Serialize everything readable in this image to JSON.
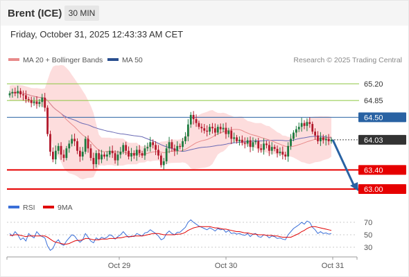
{
  "header": {
    "instrument": "Brent (ICE)",
    "interval": "30 MIN",
    "datetime": "Friday, October 31, 2025 12:43:33 AM CET"
  },
  "legend": {
    "ma20": "MA 20 + Bollinger Bands",
    "ma50": "MA 50",
    "copyright": "Research © 2025 Trading Central",
    "rsi": "RSI",
    "ma9": "9MA"
  },
  "colors": {
    "up": "#1b7a3e",
    "down": "#b2182b",
    "band": "#fdd7d7",
    "ma20": "#e88a8a",
    "ma50": "#6a6ab5",
    "resistance": "#8cc63f",
    "pivot": "#2962a3",
    "support": "#e60000",
    "last": "#333333",
    "rsi": "#3a6fd8",
    "ma9": "#e00000"
  },
  "chart_data": [
    {
      "type": "candlestick",
      "x_labels": [
        "Oct 29",
        "Oct 30",
        "Oct 31"
      ],
      "y_range": [
        62.75,
        65.52
      ],
      "levels": [
        {
          "label": "65.20",
          "value": 65.2,
          "kind": "resistance"
        },
        {
          "label": "64.85",
          "value": 64.85,
          "kind": "resistance"
        },
        {
          "label": "64.50",
          "value": 64.5,
          "kind": "pivot"
        },
        {
          "label": "64.03",
          "value": 64.03,
          "kind": "last"
        },
        {
          "label": "63.40",
          "value": 63.4,
          "kind": "support"
        },
        {
          "label": "63.00",
          "value": 63.0,
          "kind": "support"
        }
      ],
      "forecast": {
        "from": 64.03,
        "to": 63.0
      },
      "close_series": [
        65.0,
        65.03,
        65.0,
        65.05,
        64.98,
        64.96,
        64.88,
        64.86,
        64.8,
        64.83,
        64.78,
        64.82,
        64.91,
        64.7,
        64.15,
        63.78,
        63.62,
        63.8,
        63.9,
        63.72,
        63.65,
        63.85,
        63.95,
        64.05,
        64.0,
        63.8,
        63.68,
        63.78,
        64.05,
        63.85,
        63.65,
        63.52,
        63.75,
        63.62,
        63.72,
        63.68,
        63.72,
        63.8,
        63.75,
        63.6,
        63.72,
        63.78,
        63.92,
        63.8,
        63.68,
        63.75,
        63.7,
        63.82,
        63.75,
        63.7,
        63.85,
        63.88,
        63.98,
        63.92,
        63.82,
        63.7,
        63.5,
        63.58,
        63.85,
        63.98,
        63.85,
        63.8,
        63.9,
        63.88,
        64.0,
        64.1,
        64.35,
        64.55,
        64.46,
        64.38,
        64.3,
        64.27,
        64.22,
        64.2,
        64.3,
        64.27,
        64.18,
        64.3,
        64.25,
        64.28,
        64.15,
        64.22,
        64.05,
        64.08,
        64.0,
        64.03,
        63.97,
        63.95,
        64.02,
        63.88,
        63.98,
        64.0,
        63.85,
        63.82,
        63.95,
        63.92,
        63.8,
        63.88,
        63.84,
        63.75,
        63.78,
        63.72,
        63.68,
        63.9,
        64.05,
        64.18,
        64.25,
        64.3,
        64.38,
        64.32,
        64.4,
        64.36,
        64.2,
        64.12,
        64.0,
        64.08,
        64.02,
        64.05,
        64.0,
        64.03
      ]
    },
    {
      "type": "line",
      "name": "RSI",
      "y_ticks": [
        70,
        50,
        30
      ],
      "y_range": [
        15,
        80
      ],
      "series": [
        {
          "name": "RSI",
          "values": [
            52,
            48,
            55,
            50,
            42,
            45,
            40,
            52,
            48,
            45,
            55,
            50,
            47,
            45,
            32,
            25,
            28,
            38,
            42,
            35,
            33,
            40,
            45,
            50,
            48,
            42,
            38,
            42,
            52,
            46,
            40,
            37,
            45,
            42,
            46,
            44,
            46,
            50,
            48,
            43,
            47,
            50,
            55,
            50,
            46,
            48,
            47,
            52,
            50,
            48,
            53,
            54,
            58,
            55,
            52,
            48,
            42,
            44,
            52,
            56,
            52,
            50,
            54,
            54,
            58,
            62,
            70,
            74,
            70,
            67,
            64,
            62,
            60,
            58,
            61,
            59,
            56,
            60,
            58,
            59,
            54,
            57,
            52,
            53,
            51,
            52,
            50,
            49,
            52,
            47,
            51,
            52,
            47,
            46,
            50,
            49,
            45,
            48,
            47,
            44,
            45,
            43,
            42,
            50,
            55,
            60,
            63,
            66,
            70,
            67,
            72,
            70,
            62,
            58,
            52,
            55,
            52,
            53,
            51,
            52
          ]
        },
        {
          "name": "9MA",
          "values": [
            49,
            49,
            50,
            50,
            49,
            48,
            47,
            48,
            48,
            48,
            48,
            48,
            48,
            48,
            46,
            43,
            40,
            38,
            37,
            36,
            35,
            35,
            36,
            38,
            40,
            41,
            41,
            42,
            44,
            44,
            43,
            42,
            42,
            42,
            43,
            43,
            43,
            44,
            44,
            44,
            45,
            45,
            46,
            47,
            47,
            47,
            48,
            48,
            48,
            48,
            49,
            50,
            51,
            52,
            52,
            52,
            51,
            50,
            50,
            50,
            50,
            50,
            51,
            51,
            52,
            54,
            57,
            59,
            61,
            62,
            63,
            63,
            63,
            63,
            63,
            62,
            61,
            61,
            60,
            59,
            59,
            58,
            57,
            56,
            55,
            55,
            54,
            53,
            53,
            52,
            51,
            51,
            50,
            50,
            50,
            49,
            49,
            49,
            48,
            48,
            47,
            46,
            46,
            46,
            46,
            48,
            50,
            52,
            55,
            57,
            60,
            62,
            63,
            63,
            62,
            61,
            60,
            59,
            58,
            57
          ]
        }
      ]
    }
  ]
}
